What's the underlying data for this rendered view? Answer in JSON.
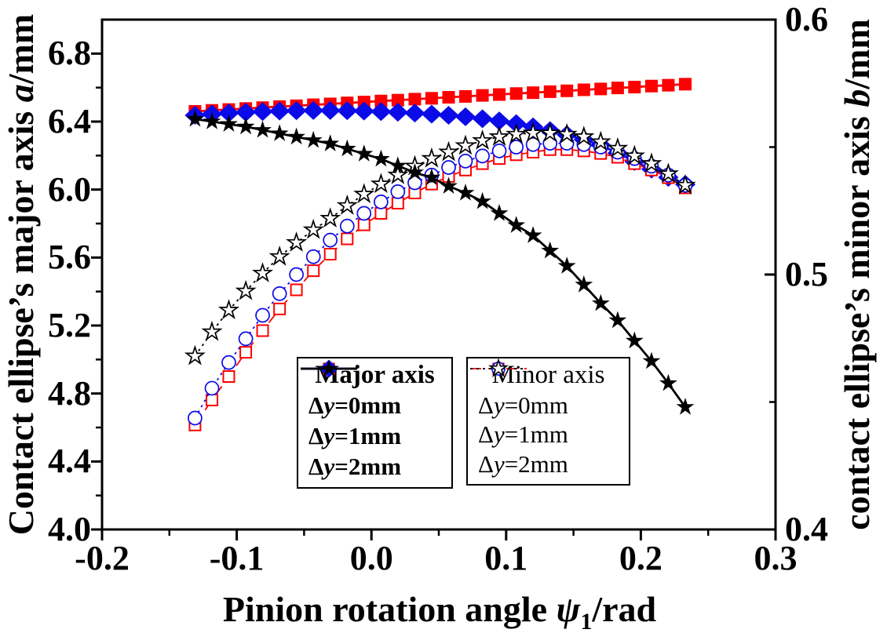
{
  "chart_data": {
    "type": "line",
    "background": "#ffffff",
    "frame_color": "#000000",
    "x_axis": {
      "label_parts": [
        "Pinion rotation angle ",
        "ψ",
        "1",
        "/rad"
      ],
      "range": [
        -0.2,
        0.3
      ],
      "major_ticks": [
        -0.2,
        -0.1,
        0.0,
        0.1,
        0.2,
        0.3
      ],
      "tick_labels": [
        "-0.2",
        "-0.1",
        "0.0",
        "0.1",
        "0.2",
        "0.3"
      ],
      "minor_ticks": [
        -0.15,
        -0.05,
        0.05,
        0.15,
        0.25
      ]
    },
    "y_left": {
      "label_parts": [
        "Contact ellipse’s major axis ",
        "a",
        "/mm"
      ],
      "range": [
        4.0,
        7.0
      ],
      "major_ticks": [
        4.0,
        4.4,
        4.8,
        5.2,
        5.6,
        6.0,
        6.4,
        6.8
      ],
      "tick_labels": [
        "4.0",
        "4.4",
        "4.8",
        "5.2",
        "5.6",
        "6.0",
        "6.4",
        "6.8"
      ],
      "minor_ticks": [
        4.2,
        4.6,
        5.0,
        5.4,
        5.8,
        6.2,
        6.6
      ]
    },
    "y_right": {
      "label_parts": [
        "contact ellipse’s minor axis ",
        "b",
        "/mm"
      ],
      "range": [
        0.4,
        0.6
      ],
      "major_ticks": [
        0.4,
        0.5,
        0.6
      ],
      "tick_labels": [
        "0.4",
        "0.5",
        "0.6"
      ],
      "minor_ticks": [
        0.45,
        0.55
      ]
    },
    "x": [
      -0.131,
      -0.1184,
      -0.1059,
      -0.0933,
      -0.0808,
      -0.0682,
      -0.0557,
      -0.0431,
      -0.0306,
      -0.018,
      -0.0055,
      0.0071,
      0.0196,
      0.0322,
      0.0447,
      0.0573,
      0.0698,
      0.0824,
      0.0949,
      0.1075,
      0.12,
      0.1326,
      0.1451,
      0.1577,
      0.1702,
      0.1828,
      0.1953,
      0.2079,
      0.2204,
      0.233
    ],
    "series": [
      {
        "name": "Major axis Δy=0mm",
        "axis": "left",
        "color": "#fe0000",
        "marker": "square",
        "line": "solid",
        "values": [
          6.46,
          6.466,
          6.471,
          6.477,
          6.482,
          6.488,
          6.493,
          6.499,
          6.504,
          6.51,
          6.515,
          6.521,
          6.526,
          6.532,
          6.537,
          6.543,
          6.548,
          6.554,
          6.559,
          6.565,
          6.57,
          6.576,
          6.581,
          6.587,
          6.592,
          6.598,
          6.603,
          6.609,
          6.614,
          6.62
        ]
      },
      {
        "name": "Major axis Δy=1mm",
        "axis": "left",
        "color": "#0b0be8",
        "marker": "diamond",
        "line": "solid",
        "values": [
          6.437,
          6.444,
          6.45,
          6.455,
          6.459,
          6.462,
          6.464,
          6.465,
          6.465,
          6.464,
          6.462,
          6.459,
          6.455,
          6.45,
          6.444,
          6.437,
          6.428,
          6.417,
          6.404,
          6.388,
          6.369,
          6.347,
          6.322,
          6.294,
          6.262,
          6.215,
          6.165,
          6.12,
          6.072,
          6.03
        ]
      },
      {
        "name": "Major axis Δy=2mm",
        "axis": "left",
        "color": "#000000",
        "marker": "star",
        "line": "solid",
        "values": [
          6.415,
          6.4,
          6.385,
          6.37,
          6.35,
          6.33,
          6.31,
          6.29,
          6.27,
          6.24,
          6.21,
          6.18,
          6.14,
          6.1,
          6.07,
          6.02,
          5.98,
          5.93,
          5.86,
          5.79,
          5.73,
          5.64,
          5.55,
          5.44,
          5.33,
          5.23,
          5.11,
          4.99,
          4.86,
          4.72
        ]
      },
      {
        "name": "Minor axis Δy=0mm",
        "axis": "right",
        "color": "#fe0000",
        "marker": "square-open",
        "line": "dash",
        "values": [
          0.441,
          0.4508,
          0.46,
          0.4695,
          0.478,
          0.4865,
          0.494,
          0.5015,
          0.508,
          0.514,
          0.5195,
          0.524,
          0.528,
          0.532,
          0.5355,
          0.5385,
          0.541,
          0.5435,
          0.5455,
          0.547,
          0.548,
          0.549,
          0.549,
          0.5485,
          0.5475,
          0.546,
          0.5435,
          0.541,
          0.538,
          0.534
        ]
      },
      {
        "name": "Minor axis Δy=1mm",
        "axis": "right",
        "color": "#0b0be8",
        "marker": "circle-open",
        "line": "dot",
        "values": [
          0.4437,
          0.4554,
          0.4655,
          0.4748,
          0.484,
          0.4925,
          0.5,
          0.507,
          0.5135,
          0.519,
          0.524,
          0.5285,
          0.5325,
          0.536,
          0.539,
          0.542,
          0.5445,
          0.5465,
          0.5485,
          0.55,
          0.551,
          0.5515,
          0.5515,
          0.551,
          0.55,
          0.548,
          0.5455,
          0.5425,
          0.539,
          0.535
        ]
      },
      {
        "name": "Minor axis Δy=2mm",
        "axis": "right",
        "color": "#000000",
        "marker": "star-open",
        "line": "dot",
        "values": [
          0.468,
          0.4775,
          0.486,
          0.4935,
          0.5005,
          0.507,
          0.5125,
          0.5175,
          0.522,
          0.527,
          0.5315,
          0.5355,
          0.539,
          0.5425,
          0.5455,
          0.548,
          0.5505,
          0.5525,
          0.554,
          0.555,
          0.5555,
          0.5555,
          0.555,
          0.554,
          0.552,
          0.5495,
          0.5465,
          0.5435,
          0.5395,
          0.535
        ]
      }
    ],
    "legend": {
      "major": {
        "title": "Major axis",
        "entries": [
          {
            "pre": "Δ",
            "it": "y",
            "post": "=0mm"
          },
          {
            "pre": "Δ",
            "it": "y",
            "post": "=1mm"
          },
          {
            "pre": "Δ",
            "it": "y",
            "post": "=2mm"
          }
        ]
      },
      "minor": {
        "title": "Minor axis",
        "entries": [
          {
            "pre": "Δ",
            "it": "y",
            "post": "=0mm"
          },
          {
            "pre": "Δ",
            "it": "y",
            "post": "=1mm"
          },
          {
            "pre": "Δ",
            "it": "y",
            "post": "=2mm"
          }
        ]
      }
    }
  }
}
